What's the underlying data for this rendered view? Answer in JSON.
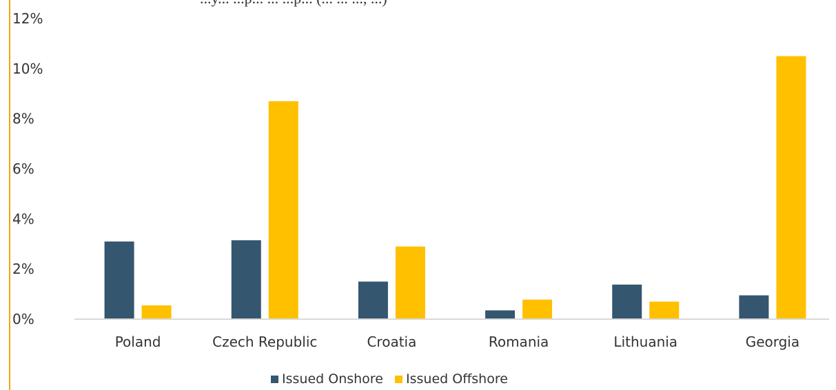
{
  "chart_data": {
    "type": "bar",
    "title_fragment": "...y... ...p... ... ...p... (... ... ..., ...)",
    "categories": [
      "Poland",
      "Czech Republic",
      "Croatia",
      "Romania",
      "Lithuania",
      "Georgia"
    ],
    "series": [
      {
        "name": "Issued Onshore",
        "color": "#34566f",
        "values": [
          3.1,
          3.15,
          1.5,
          0.35,
          1.38,
          0.95
        ]
      },
      {
        "name": "Issued Offshore",
        "color": "#ffc000",
        "values": [
          0.55,
          8.7,
          2.9,
          0.78,
          0.7,
          10.5
        ]
      }
    ],
    "ylim": [
      0,
      12
    ],
    "yticks": [
      0,
      2,
      4,
      6,
      8,
      10,
      12
    ],
    "ytick_labels": [
      "0%",
      "2%",
      "4%",
      "6%",
      "8%",
      "10%",
      "12%"
    ],
    "xlabel": "",
    "ylabel": "",
    "grid": false,
    "legend_position": "bottom",
    "colors": {
      "left_border": "#f0a500",
      "baseline": "#d9d9d9"
    }
  }
}
